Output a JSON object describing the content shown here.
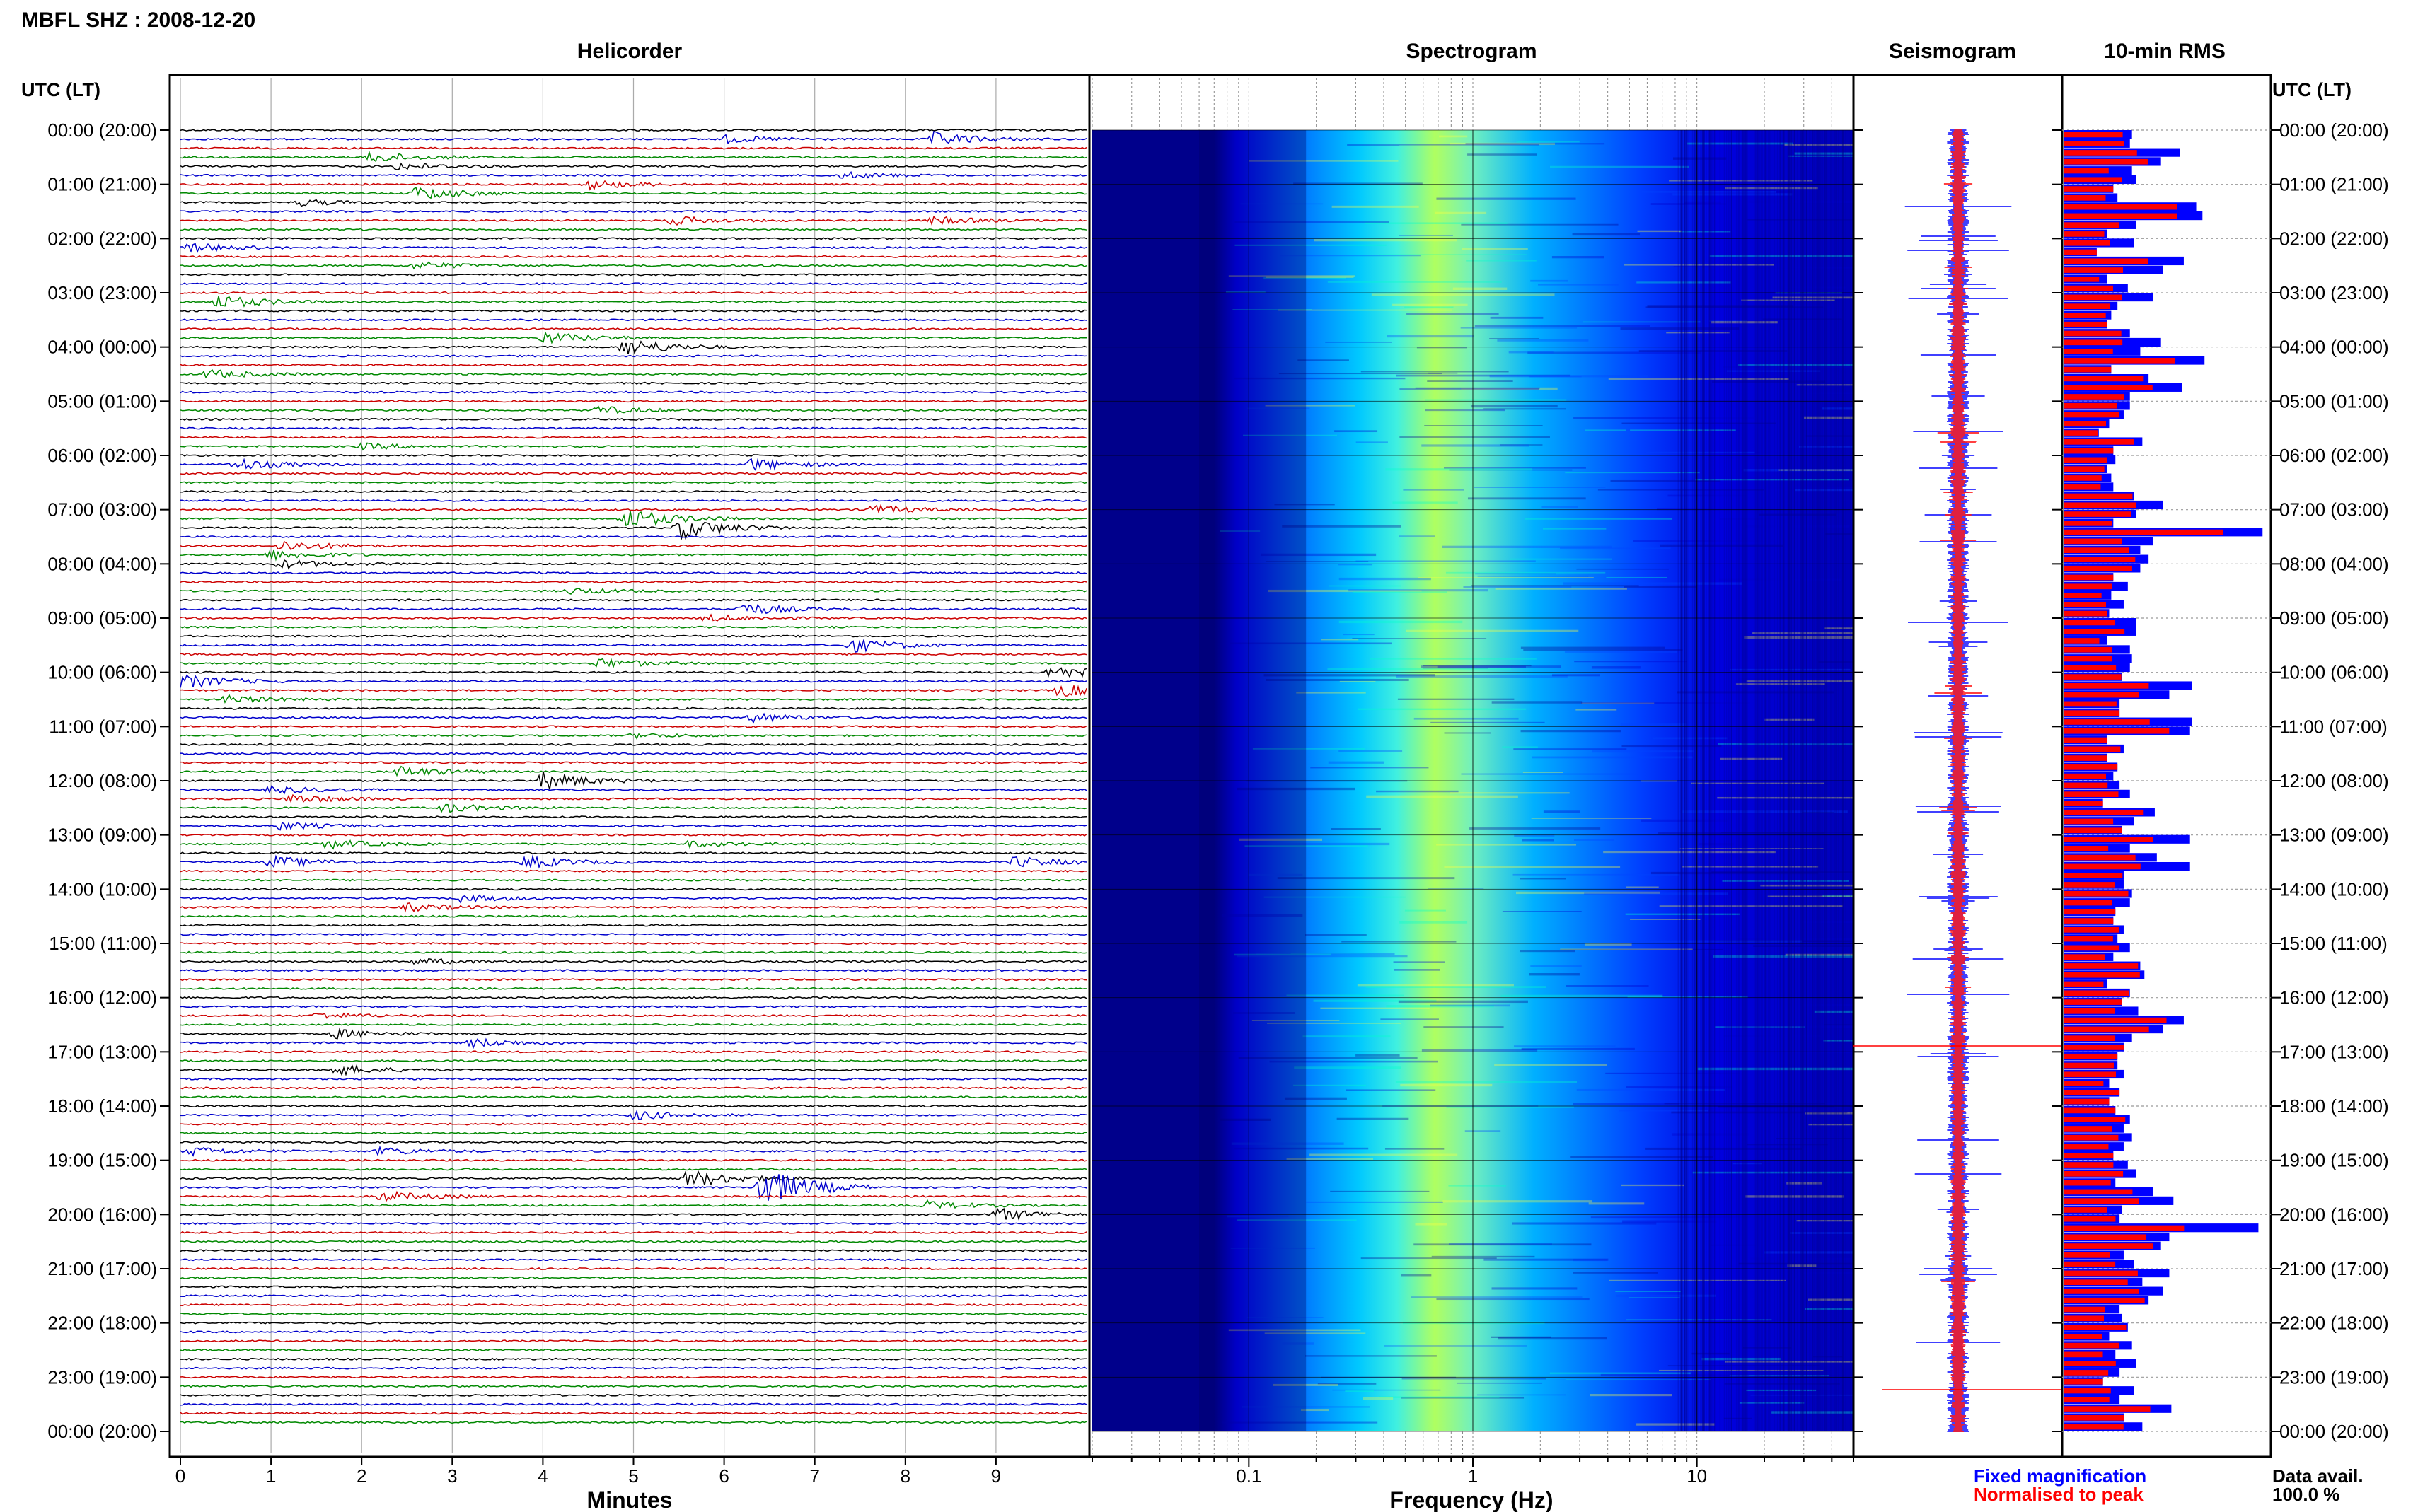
{
  "figure": {
    "header": "MBFL SHZ : 2008-12-20",
    "time_label_left": "UTC (LT)",
    "time_label_right": "UTC (LT)",
    "data_avail_label": "Data avail.",
    "data_avail_value": "100.0 %"
  },
  "chart_data": [
    {
      "type": "line",
      "title": "Helicorder",
      "xlabel": "Minutes",
      "xlim": [
        0,
        10
      ],
      "x_ticks": [
        "0",
        "1",
        "2",
        "3",
        "4",
        "5",
        "6",
        "7",
        "8",
        "9"
      ],
      "traces_per_hour": 6,
      "hours": 24,
      "trace_colors": [
        "#000000",
        "#0000cc",
        "#cc0000",
        "#008800"
      ],
      "row_labels": [
        "00:00 (20:00)",
        "01:00 (21:00)",
        "02:00 (22:00)",
        "03:00 (23:00)",
        "04:00 (00:00)",
        "05:00 (01:00)",
        "06:00 (02:00)",
        "07:00 (03:00)",
        "08:00 (04:00)",
        "09:00 (05:00)",
        "10:00 (06:00)",
        "11:00 (07:00)",
        "12:00 (08:00)",
        "13:00 (09:00)",
        "14:00 (10:00)",
        "15:00 (11:00)",
        "16:00 (12:00)",
        "17:00 (13:00)",
        "18:00 (14:00)",
        "19:00 (15:00)",
        "20:00 (16:00)",
        "21:00 (17:00)",
        "22:00 (18:00)",
        "23:00 (19:00)",
        "00:00 (20:00)"
      ],
      "events": [
        {
          "trace": 1,
          "minute": 6.0,
          "amp": 0.5
        },
        {
          "trace": 1,
          "minute": 8.3,
          "amp": 0.9
        },
        {
          "trace": 3,
          "minute": 2.1,
          "amp": 0.7
        },
        {
          "trace": 4,
          "minute": 2.4,
          "amp": 0.5
        },
        {
          "trace": 5,
          "minute": 7.3,
          "amp": 0.4
        },
        {
          "trace": 6,
          "minute": 4.5,
          "amp": 0.6
        },
        {
          "trace": 7,
          "minute": 2.6,
          "amp": 0.9
        },
        {
          "trace": 8,
          "minute": 1.3,
          "amp": 0.4
        },
        {
          "trace": 10,
          "minute": 5.4,
          "amp": 0.6
        },
        {
          "trace": 10,
          "minute": 8.3,
          "amp": 0.5
        },
        {
          "trace": 13,
          "minute": 0.1,
          "amp": 0.6
        },
        {
          "trace": 15,
          "minute": 2.6,
          "amp": 0.5
        },
        {
          "trace": 19,
          "minute": 0.4,
          "amp": 0.9
        },
        {
          "trace": 23,
          "minute": 4.0,
          "amp": 0.8
        },
        {
          "trace": 24,
          "minute": 4.9,
          "amp": 1.2
        },
        {
          "trace": 27,
          "minute": 0.3,
          "amp": 0.6
        },
        {
          "trace": 31,
          "minute": 4.6,
          "amp": 0.5
        },
        {
          "trace": 35,
          "minute": 2.0,
          "amp": 0.4
        },
        {
          "trace": 37,
          "minute": 0.6,
          "amp": 0.8
        },
        {
          "trace": 37,
          "minute": 6.3,
          "amp": 0.8
        },
        {
          "trace": 42,
          "minute": 7.6,
          "amp": 0.6
        },
        {
          "trace": 43,
          "minute": 4.9,
          "amp": 1.4
        },
        {
          "trace": 44,
          "minute": 5.5,
          "amp": 1.5
        },
        {
          "trace": 46,
          "minute": 1.1,
          "amp": 0.7
        },
        {
          "trace": 47,
          "minute": 1.0,
          "amp": 0.6
        },
        {
          "trace": 48,
          "minute": 1.1,
          "amp": 0.6
        },
        {
          "trace": 51,
          "minute": 4.3,
          "amp": 0.4
        },
        {
          "trace": 53,
          "minute": 6.2,
          "amp": 0.8
        },
        {
          "trace": 54,
          "minute": 5.8,
          "amp": 0.4
        },
        {
          "trace": 57,
          "minute": 7.4,
          "amp": 0.9
        },
        {
          "trace": 59,
          "minute": 4.6,
          "amp": 0.7
        },
        {
          "trace": 60,
          "minute": 9.6,
          "amp": 0.9
        },
        {
          "trace": 61,
          "minute": 0.0,
          "amp": 1.0
        },
        {
          "trace": 62,
          "minute": 9.7,
          "amp": 0.8
        },
        {
          "trace": 63,
          "minute": 0.5,
          "amp": 0.5
        },
        {
          "trace": 65,
          "minute": 6.3,
          "amp": 0.6
        },
        {
          "trace": 67,
          "minute": 5.0,
          "amp": 0.3
        },
        {
          "trace": 71,
          "minute": 2.4,
          "amp": 0.7
        },
        {
          "trace": 72,
          "minute": 4.0,
          "amp": 1.2
        },
        {
          "trace": 73,
          "minute": 1.0,
          "amp": 0.5
        },
        {
          "trace": 74,
          "minute": 1.2,
          "amp": 0.6
        },
        {
          "trace": 75,
          "minute": 2.9,
          "amp": 0.6
        },
        {
          "trace": 77,
          "minute": 1.1,
          "amp": 0.5
        },
        {
          "trace": 79,
          "minute": 1.6,
          "amp": 0.6
        },
        {
          "trace": 79,
          "minute": 5.6,
          "amp": 0.4
        },
        {
          "trace": 81,
          "minute": 1.0,
          "amp": 0.8
        },
        {
          "trace": 81,
          "minute": 3.8,
          "amp": 0.8
        },
        {
          "trace": 81,
          "minute": 9.2,
          "amp": 0.7
        },
        {
          "trace": 85,
          "minute": 3.1,
          "amp": 0.5
        },
        {
          "trace": 86,
          "minute": 2.5,
          "amp": 0.5
        },
        {
          "trace": 92,
          "minute": 2.6,
          "amp": 0.4
        },
        {
          "trace": 98,
          "minute": 1.5,
          "amp": 0.4
        },
        {
          "trace": 100,
          "minute": 1.7,
          "amp": 0.6
        },
        {
          "trace": 101,
          "minute": 3.2,
          "amp": 0.6
        },
        {
          "trace": 104,
          "minute": 1.7,
          "amp": 0.7
        },
        {
          "trace": 109,
          "minute": 5.0,
          "amp": 0.6
        },
        {
          "trace": 113,
          "minute": 0.1,
          "amp": 0.6
        },
        {
          "trace": 113,
          "minute": 2.2,
          "amp": 0.5
        },
        {
          "trace": 116,
          "minute": 5.6,
          "amp": 1.2
        },
        {
          "trace": 117,
          "minute": 6.4,
          "amp": 2.8
        },
        {
          "trace": 118,
          "minute": 2.2,
          "amp": 0.7
        },
        {
          "trace": 119,
          "minute": 8.2,
          "amp": 0.6
        },
        {
          "trace": 120,
          "minute": 9.0,
          "amp": 0.8
        }
      ]
    },
    {
      "type": "heatmap",
      "title": "Spectrogram",
      "xlabel": "Frequency (Hz)",
      "x_scale": "log",
      "xlim": [
        0.02,
        50
      ],
      "x_ticks": [
        "0.1",
        "1",
        "10"
      ],
      "colormap": [
        "#00008b",
        "#0000ff",
        "#0066ff",
        "#00ccff",
        "#66ffcc",
        "#ccff33"
      ]
    },
    {
      "type": "line",
      "title": "Seismogram",
      "series": [
        {
          "name": "Fixed magnification",
          "color": "#0000ff"
        },
        {
          "name": "Normalised to peak",
          "color": "#ff0000"
        }
      ]
    },
    {
      "type": "bar",
      "title": "10-min RMS",
      "orientation": "horizontal",
      "series": [
        {
          "name": "Fixed magnification",
          "color": "#0000ff",
          "relative_values": [
            0.33,
            0.32,
            0.56,
            0.47,
            0.33,
            0.35,
            0.24,
            0.26,
            0.64,
            0.67,
            0.35,
            0.21,
            0.34,
            0.16,
            0.58,
            0.48,
            0.21,
            0.31,
            0.43,
            0.26,
            0.23,
            0.21,
            0.32,
            0.47,
            0.37,
            0.68,
            0.23,
            0.41,
            0.57,
            0.32,
            0.32,
            0.29,
            0.22,
            0.17,
            0.38,
            0.24,
            0.25,
            0.21,
            0.23,
            0.24,
            0.34,
            0.48,
            0.35,
            0.24,
            0.96,
            0.43,
            0.37,
            0.41,
            0.37,
            0.24,
            0.31,
            0.23,
            0.29,
            0.22,
            0.35,
            0.35,
            0.21,
            0.32,
            0.33,
            0.32,
            0.28,
            0.62,
            0.51,
            0.27,
            0.27,
            0.62,
            0.61,
            0.21,
            0.29,
            0.21,
            0.26,
            0.24,
            0.27,
            0.32,
            0.19,
            0.44,
            0.34,
            0.28,
            0.61,
            0.32,
            0.45,
            0.61,
            0.29,
            0.29,
            0.33,
            0.32,
            0.25,
            0.24,
            0.29,
            0.26,
            0.32,
            0.24,
            0.37,
            0.39,
            0.21,
            0.32,
            0.28,
            0.36,
            0.58,
            0.48,
            0.33,
            0.29,
            0.26,
            0.26,
            0.29,
            0.22,
            0.27,
            0.22,
            0.25,
            0.32,
            0.29,
            0.33,
            0.29,
            0.24,
            0.31,
            0.35,
            0.25,
            0.43,
            0.53,
            0.28,
            0.27,
            0.94,
            0.51,
            0.47,
            0.29,
            0.34,
            0.51,
            0.38,
            0.48,
            0.41,
            0.27,
            0.28,
            0.31,
            0.22,
            0.33,
            0.25,
            0.35,
            0.27,
            0.19,
            0.34,
            0.27,
            0.52,
            0.29,
            0.38
          ]
        },
        {
          "name": "Normalised to peak",
          "color": "#ff0000"
        }
      ]
    }
  ]
}
